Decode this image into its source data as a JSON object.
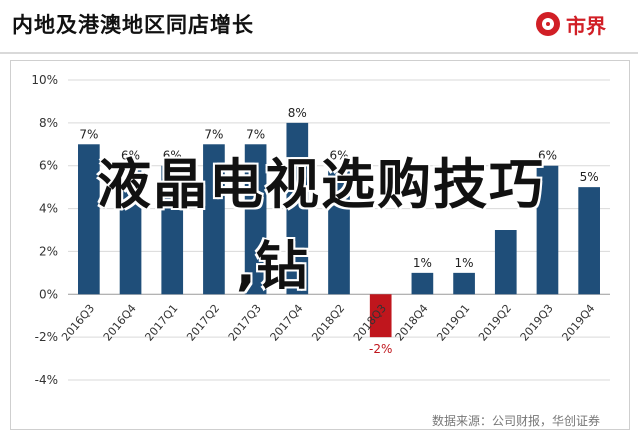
{
  "header": {
    "title": "内地及港澳地区同店增长",
    "logo_text": "市界",
    "logo_color": "#d11f26"
  },
  "overlay": {
    "line1": "液晶电视选购技巧",
    "line2": ",钻"
  },
  "source": "数据来源：公司财报，华创证券",
  "chart_data": {
    "type": "bar",
    "categories": [
      "2016Q3",
      "2016Q4",
      "2017Q1",
      "2017Q2",
      "2017Q3",
      "2017Q4",
      "2018Q2",
      "2018Q3",
      "2018Q4",
      "2019Q1",
      "2019Q2",
      "2019Q3",
      "2019Q4"
    ],
    "values": [
      7,
      6,
      6,
      7,
      7,
      8,
      6,
      -2,
      1,
      1,
      3,
      6,
      5
    ],
    "data_labels": [
      "7%",
      "6%",
      "6%",
      "7%",
      "7%",
      "8%",
      "6%",
      "-2%",
      "1%",
      "1%",
      "",
      "6%",
      "5%"
    ],
    "y_ticks": [
      10,
      8,
      6,
      4,
      2,
      0,
      -2,
      -4
    ],
    "y_tick_labels": [
      "10%",
      "8%",
      "6%",
      "4%",
      "2%",
      "0%",
      "-2%",
      "-4%"
    ],
    "ylim": [
      -4,
      10
    ],
    "grid": true,
    "colors": {
      "positive": "#1f4e79",
      "negative": "#c0161d",
      "label": "#222222",
      "negative_label": "#c0161d"
    }
  }
}
